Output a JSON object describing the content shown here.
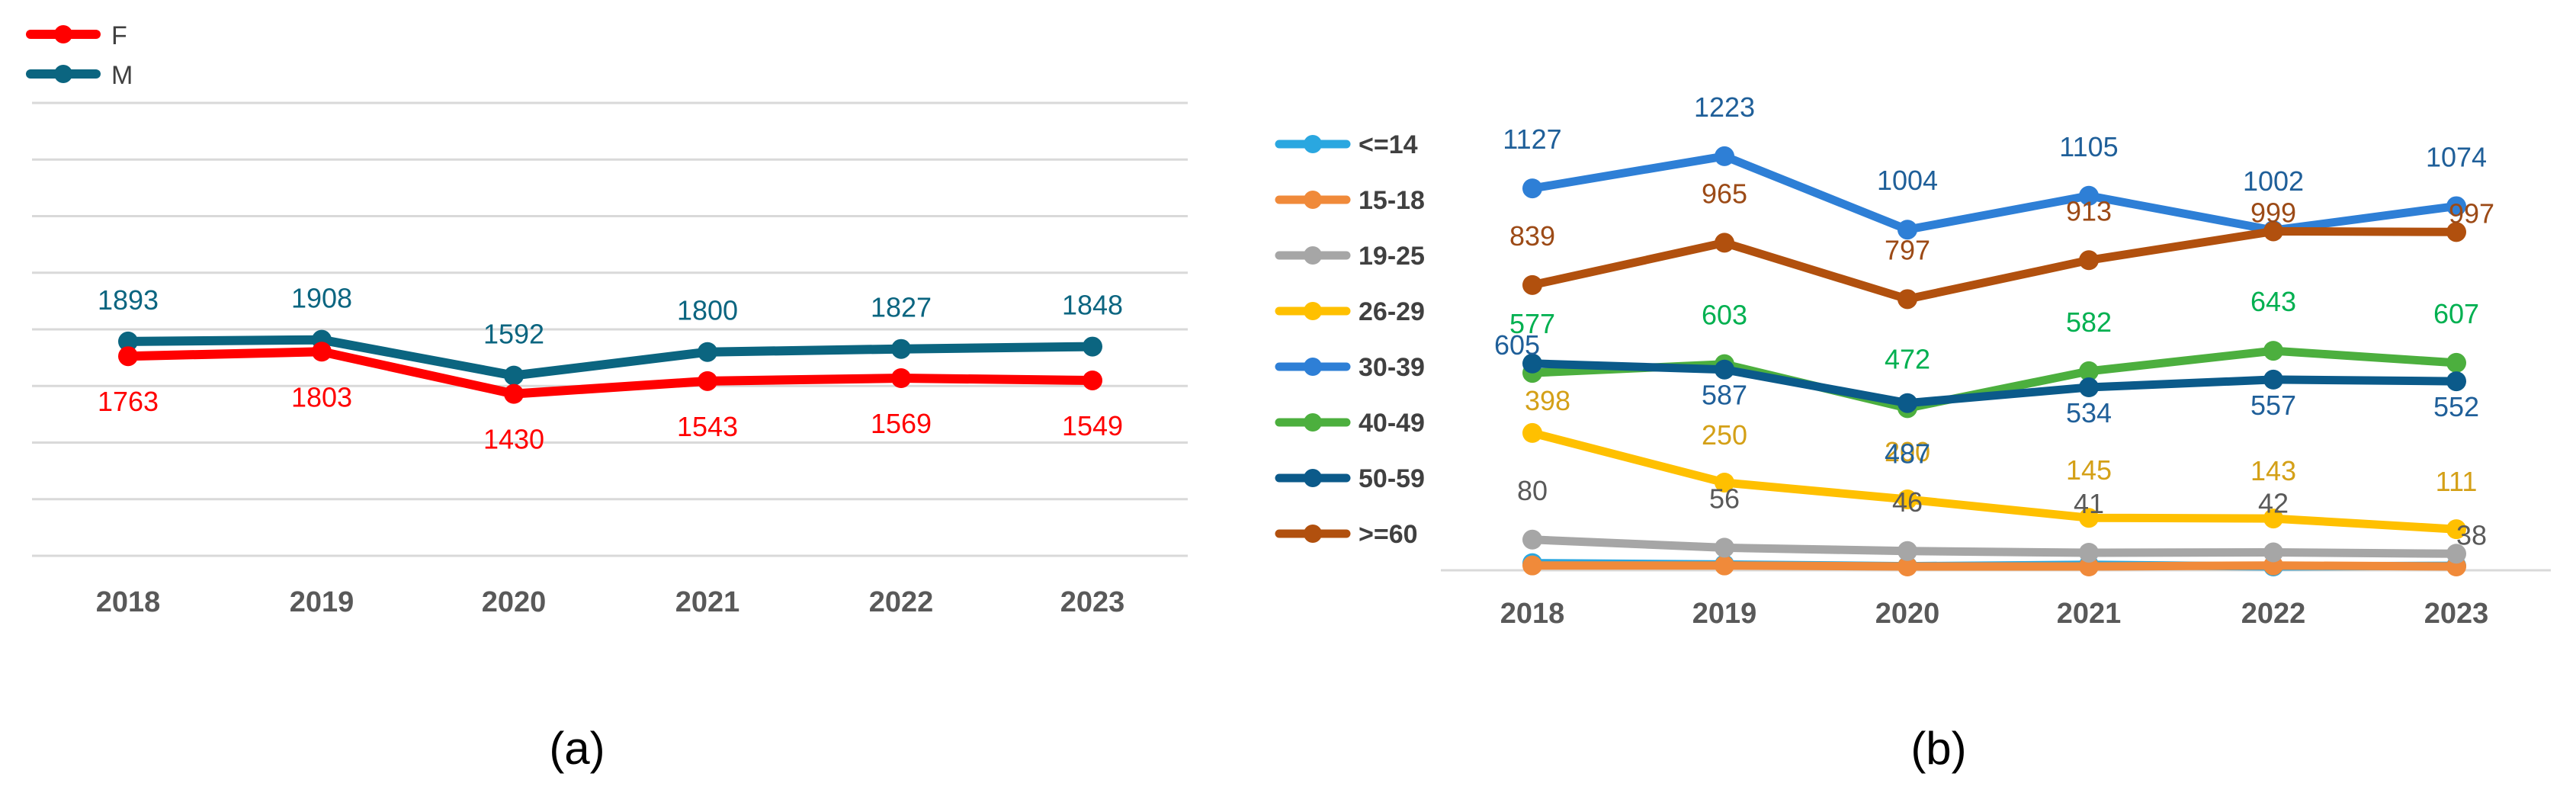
{
  "chart_data": [
    {
      "type": "line",
      "panel_label": "(a)",
      "categories": [
        "2018",
        "2019",
        "2020",
        "2021",
        "2022",
        "2023"
      ],
      "series": [
        {
          "name": "F",
          "color": "#ff0000",
          "values": [
            1763,
            1803,
            1430,
            1543,
            1569,
            1549
          ]
        },
        {
          "name": "M",
          "color": "#0b6580",
          "values": [
            1893,
            1908,
            1592,
            1800,
            1827,
            1848
          ]
        }
      ],
      "ylim": [
        0,
        4000
      ],
      "grid": true,
      "legend": "top-left"
    },
    {
      "type": "line",
      "panel_label": "(b)",
      "categories": [
        "2018",
        "2019",
        "2020",
        "2021",
        "2022",
        "2023"
      ],
      "series": [
        {
          "name": "<=14",
          "color": "#2aa7e0",
          "values": [
            10,
            6,
            1,
            5,
            0,
            2
          ],
          "labels": [
            "",
            "",
            "",
            "",
            "",
            ""
          ]
        },
        {
          "name": "15-18",
          "color": "#f08a3a",
          "values": [
            3,
            3,
            0,
            0,
            3,
            0
          ],
          "labels": [
            "",
            "",
            "",
            "",
            "",
            ""
          ]
        },
        {
          "name": "19-25",
          "color": "#a6a6a6",
          "values": [
            80,
            56,
            46,
            41,
            42,
            38
          ],
          "labels": [
            "80",
            "56",
            "46",
            "41",
            "42",
            "38"
          ]
        },
        {
          "name": "26-29",
          "color": "#ffc000",
          "values": [
            398,
            250,
            200,
            145,
            143,
            111
          ],
          "labels": [
            "398",
            "250",
            "200",
            "145",
            "143",
            "111"
          ]
        },
        {
          "name": "30-39",
          "color": "#2e7fd6",
          "values": [
            1127,
            1223,
            1004,
            1105,
            1002,
            1074
          ],
          "labels": [
            "1127",
            "1223",
            "1004",
            "1105",
            "1002",
            "1074"
          ]
        },
        {
          "name": "40-49",
          "color": "#4caf3e",
          "values": [
            577,
            603,
            472,
            582,
            643,
            607
          ],
          "labels": [
            "577",
            "603",
            "472",
            "582",
            "643",
            "607"
          ]
        },
        {
          "name": "50-59",
          "color": "#0b5a8a",
          "values": [
            605,
            587,
            487,
            534,
            557,
            552
          ],
          "labels": [
            "605",
            "587",
            "487",
            "534",
            "557",
            "552"
          ]
        },
        {
          "name": ">=60",
          "color": "#b1500e",
          "values": [
            839,
            965,
            797,
            913,
            999,
            997
          ],
          "labels": [
            "839",
            "965",
            "797",
            "913",
            "999",
            "997"
          ]
        }
      ],
      "label_colors": {
        "19-25": "#595959",
        "26-29": "#d4a017",
        "30-39": "#1f5f99",
        "40-49": "#00b050",
        "50-59": "#1f5f99",
        ">=60": "#9c4a16"
      },
      "ylim": [
        0,
        1300
      ],
      "grid": false,
      "legend": "left"
    }
  ]
}
